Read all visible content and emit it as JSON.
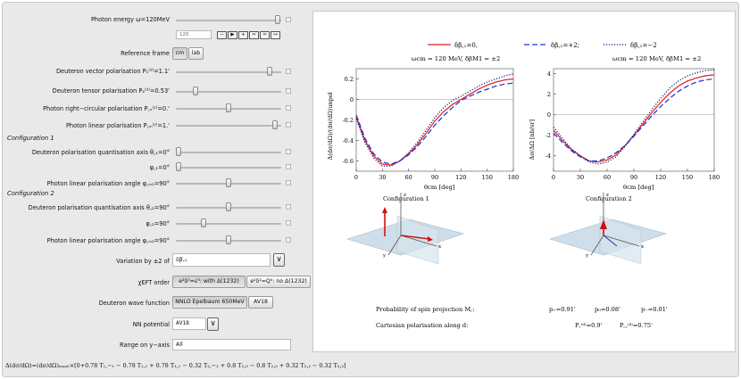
{
  "controls": {
    "photon_energy": {
      "label": "Photon energy ω=120MeV",
      "value_field": "120",
      "level": 0.95
    },
    "animator_buttons": [
      "−",
      "▶",
      "+",
      "≈",
      "≈",
      "↦"
    ],
    "reference_frame": {
      "label": "Reference frame",
      "options": [
        "cm",
        "lab"
      ],
      "selected": "cm"
    },
    "sliders_top": [
      {
        "label": "Deuteron vector polarisation P₁⁽ᵈ⁾=1.1'",
        "level": 0.92
      },
      {
        "label": "Deuteron tensor polarisation P₂⁽ᵈ⁾=0.53'",
        "level": 0.17
      },
      {
        "label": "Photon right−circular polarisation P꜀ᵢᵣ⁽ʸ⁾=0.'",
        "level": 0.5
      },
      {
        "label": "Photon linear polarisation P꜀ᵢₙ⁽ʸ⁾=1.'",
        "level": 0.97
      }
    ],
    "config1": {
      "title": "Configuration 1",
      "sliders": [
        {
          "label": "Deuteron polarisation quantisation axis θ꜀₁=0°",
          "level": 0.0
        },
        {
          "label": "φ꜀₁=0°",
          "level": 0.0
        },
        {
          "label": "Photon linear polarisation angle φ꜀ᵢₙ₁=90°",
          "level": 0.5
        }
      ]
    },
    "config2": {
      "title": "Configuration 2",
      "sliders": [
        {
          "label": "Deuteron polarisation quantisation axis θ꜀₂=90°",
          "level": 0.5
        },
        {
          "label": "φ꜀₂=90°",
          "level": 0.25
        },
        {
          "label": "Photon linear polarisation angle φ꜀ᵢₙ₂=90°",
          "level": 0.5
        }
      ]
    },
    "variation": {
      "label": "Variation by ±2 of",
      "value": "δβ꜀₁"
    },
    "eft_order": {
      "label": "χEFT order",
      "options": [
        "e²δ⁰=ε³: with Δ(1232)",
        "e²δ²=Q⁴: no Δ(1232)"
      ],
      "selected": 0
    },
    "wave_function": {
      "label": "Deuteron wave function",
      "options": [
        "NNLO Epelbaum 650MeV",
        "AV18"
      ],
      "selected": 0
    },
    "nn_potential": {
      "label": "NN potential",
      "value": "AV18"
    },
    "y_range": {
      "label": "Range on y−axis",
      "value": "All"
    },
    "formula": "Δ(dσ/dΩ)=(dσ/dΩ)ᵤₙₚₒₗ×[0+0.78 T₁,−₁ − 0.78 T₁,₁ + 0.78 T₁,₁ − 0.32 T₂,−₂ + 0.8 T₂,₀ − 0.8 T₂,₀ + 0.32 T₂,₂ − 0.32 T₂,₂]"
  },
  "legend": {
    "items": [
      {
        "label": "δβ꜀₁=0,",
        "color": "#e02020",
        "dash": "solid"
      },
      {
        "label": "δβ꜀₁=+2;",
        "color": "#2030c8",
        "dash": "dashed"
      },
      {
        "label": "δβ꜀₁=−2",
        "color": "#101080",
        "dash": "dotted"
      }
    ]
  },
  "chart_data": [
    {
      "type": "line",
      "title": "ωcm = 120 MeV, δβM1 = ±2",
      "xlabel": "θcm [deg]",
      "ylabel": "Δ(dσ/dΩ)/(dσ/dΩ)unpol",
      "xlim": [
        0,
        180
      ],
      "ylim": [
        -0.7,
        0.3
      ],
      "xticks": [
        0,
        30,
        60,
        90,
        120,
        150,
        180
      ],
      "yticks": [
        -0.6,
        -0.4,
        -0.2,
        0.0,
        0.2
      ],
      "x": [
        0,
        10,
        20,
        30,
        40,
        50,
        60,
        70,
        80,
        90,
        100,
        110,
        120,
        130,
        140,
        150,
        160,
        170,
        180
      ],
      "series": [
        {
          "name": "δβM1=0",
          "values": [
            -0.17,
            -0.4,
            -0.55,
            -0.63,
            -0.64,
            -0.6,
            -0.53,
            -0.44,
            -0.33,
            -0.21,
            -0.12,
            -0.05,
            0.0,
            0.05,
            0.1,
            0.14,
            0.17,
            0.19,
            0.2
          ]
        },
        {
          "name": "δβM1=+2",
          "values": [
            -0.15,
            -0.38,
            -0.53,
            -0.61,
            -0.63,
            -0.6,
            -0.54,
            -0.46,
            -0.36,
            -0.25,
            -0.16,
            -0.08,
            -0.01,
            0.03,
            0.07,
            0.1,
            0.13,
            0.15,
            0.16
          ]
        },
        {
          "name": "δβM1=−2",
          "values": [
            -0.19,
            -0.42,
            -0.57,
            -0.65,
            -0.65,
            -0.6,
            -0.52,
            -0.42,
            -0.3,
            -0.18,
            -0.08,
            -0.01,
            0.03,
            0.08,
            0.13,
            0.17,
            0.2,
            0.23,
            0.25
          ]
        }
      ]
    },
    {
      "type": "line",
      "title": "ωcm = 120 MeV, δβM1 = ±2",
      "xlabel": "θcm [deg]",
      "ylabel": "Δσ/ΔΩ [nb/sr]",
      "xlim": [
        0,
        180
      ],
      "ylim": [
        -5.5,
        4.5
      ],
      "xticks": [
        0,
        30,
        60,
        90,
        120,
        150,
        180
      ],
      "yticks": [
        -4,
        -2,
        0,
        2,
        4
      ],
      "x": [
        0,
        10,
        20,
        30,
        40,
        50,
        60,
        70,
        80,
        90,
        100,
        110,
        120,
        130,
        140,
        150,
        160,
        170,
        180
      ],
      "series": [
        {
          "name": "δβM1=0",
          "values": [
            -1.5,
            -2.5,
            -3.4,
            -4.0,
            -4.5,
            -4.6,
            -4.4,
            -3.9,
            -3.0,
            -2.0,
            -0.9,
            0.2,
            1.2,
            2.1,
            2.8,
            3.3,
            3.6,
            3.8,
            3.9
          ]
        },
        {
          "name": "δβM1=+2",
          "values": [
            -1.8,
            -2.7,
            -3.5,
            -4.1,
            -4.5,
            -4.5,
            -4.2,
            -3.7,
            -3.0,
            -2.1,
            -1.1,
            -0.1,
            0.8,
            1.6,
            2.3,
            2.8,
            3.2,
            3.4,
            3.5
          ]
        },
        {
          "name": "δβM1=−2",
          "values": [
            -1.2,
            -2.3,
            -3.3,
            -4.0,
            -4.6,
            -4.8,
            -4.6,
            -4.1,
            -3.1,
            -1.9,
            -0.7,
            0.5,
            1.6,
            2.6,
            3.3,
            3.8,
            4.1,
            4.3,
            4.4
          ]
        }
      ]
    }
  ],
  "diagrams": {
    "config1_label": "Configuration 1",
    "config2_label": "Configuration 2",
    "axis_z": "z",
    "axis_x": "x",
    "axis_y": "y"
  },
  "readouts": {
    "prob_label": "Probability of spin projection M꜀:",
    "cart_label": "Cartesian polarisation along d:",
    "p_plus": "p₊=0.91'",
    "p_zero": "p₀=0.08'",
    "p_minus": "p₋=0.01'",
    "pz": "P꜀⁽ᵈ⁾=0.9'",
    "pzz": "P꜀꜀⁽ᵈ⁾=0.75'"
  }
}
